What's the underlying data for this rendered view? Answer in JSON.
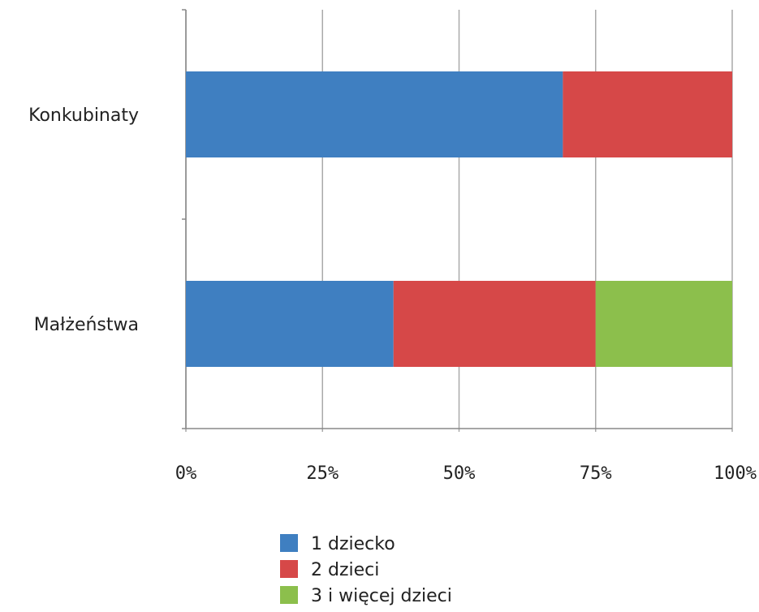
{
  "colors": {
    "series_1": "#3f7fc1",
    "series_2": "#d64848",
    "series_3": "#8cbf4c",
    "grid": "#a9a9a9",
    "axis": "#888888"
  },
  "chart_data": {
    "type": "bar",
    "orientation": "horizontal",
    "stacked": true,
    "categories": [
      "Konkubinaty",
      "Małżeństwa"
    ],
    "series": [
      {
        "name": "1 dziecko",
        "values": [
          0.69,
          0.38
        ]
      },
      {
        "name": "2 dzieci",
        "values": [
          0.31,
          0.37
        ]
      },
      {
        "name": "3 i więcej dzieci",
        "values": [
          0.0,
          0.25
        ]
      }
    ],
    "x_ticks": [
      "0%",
      "25%",
      "50%",
      "75%",
      "100%"
    ],
    "xlim": [
      0,
      1
    ],
    "grid": true,
    "legend_position": "bottom"
  }
}
